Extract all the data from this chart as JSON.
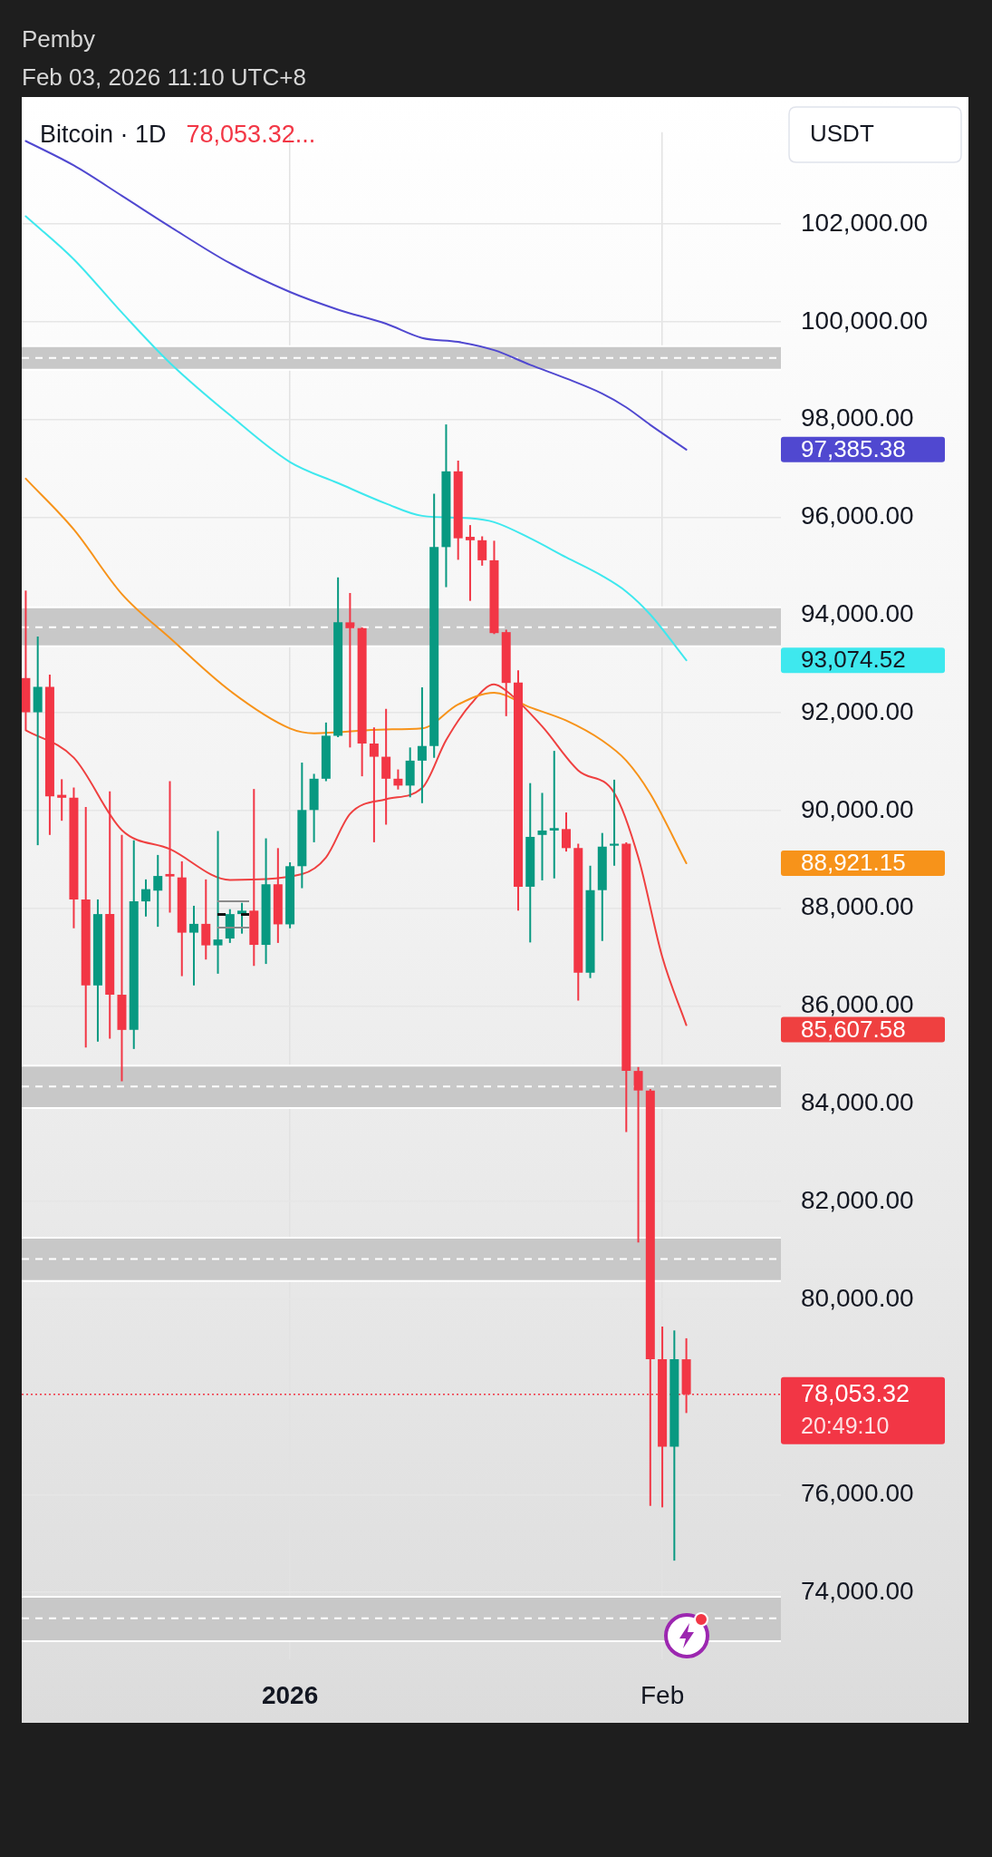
{
  "chart_data": {
    "type": "candlestick",
    "title": "Bitcoin · 1D",
    "subtitle": "78,053.32...",
    "ylabel": "USDT",
    "annotations": [
      "Pemby",
      "Feb 03, 2026 11:10 UTC+8",
      "97,385.38",
      "93,074.52",
      "88,921.15",
      "85,607.58"
    ],
    "xlim": [
      "2025-12-09T16:00",
      "2026-02-10T21:00"
    ],
    "xticks": [
      {
        "value": "2026-01-01",
        "label": "2026"
      },
      {
        "value": "2026-02-01",
        "label": "Feb"
      }
    ],
    "ylim": [
      72630,
      103880
    ],
    "yticks": [
      {
        "value": 74000,
        "label": "74,000.00"
      },
      {
        "value": 76000,
        "label": "76,000.00"
      },
      {
        "value": 78000,
        "label": null
      },
      {
        "value": 80000,
        "label": "80,000.00"
      },
      {
        "value": 82000,
        "label": "82,000.00"
      },
      {
        "value": 84000,
        "label": "84,000.00"
      },
      {
        "value": 86000,
        "label": "86,000.00"
      },
      {
        "value": 88000,
        "label": "88,000.00"
      },
      {
        "value": 90000,
        "label": "90,000.00"
      },
      {
        "value": 92000,
        "label": "92,000.00"
      },
      {
        "value": 94000,
        "label": "94,000.00"
      },
      {
        "value": 96000,
        "label": "96,000.00"
      },
      {
        "value": 98000,
        "label": "98,000.00"
      },
      {
        "value": 100000,
        "label": "100,000.00"
      },
      {
        "value": 102000,
        "label": "102,000.00"
      }
    ],
    "grid": true,
    "series": [
      {
        "x": [
          "2025-12-10",
          "2025-12-11",
          "2025-12-12",
          "2025-12-13",
          "2025-12-14",
          "2025-12-15",
          "2025-12-16",
          "2025-12-17",
          "2025-12-18",
          "2025-12-19",
          "2025-12-20",
          "2025-12-21",
          "2025-12-22",
          "2025-12-23",
          "2025-12-24",
          "2025-12-25",
          "2025-12-26",
          "2025-12-27",
          "2025-12-28",
          "2025-12-29",
          "2025-12-30",
          "2025-12-31",
          "2026-01-01",
          "2026-01-02",
          "2026-01-03",
          "2026-01-04",
          "2026-01-05",
          "2026-01-06",
          "2026-01-07",
          "2026-01-08",
          "2026-01-09",
          "2026-01-10",
          "2026-01-11",
          "2026-01-12",
          "2026-01-13",
          "2026-01-14",
          "2026-01-15",
          "2026-01-16",
          "2026-01-17",
          "2026-01-18",
          "2026-01-19",
          "2026-01-20",
          "2026-01-21",
          "2026-01-22",
          "2026-01-23",
          "2026-01-24",
          "2026-01-25",
          "2026-01-26",
          "2026-01-27",
          "2026-01-28",
          "2026-01-29",
          "2026-01-30",
          "2026-01-31",
          "2026-02-01",
          "2026-02-02",
          "2026-02-03"
        ],
        "ohlc": [
          [
            92710,
            94500,
            91650,
            92010
          ],
          [
            92010,
            93560,
            89290,
            92530
          ],
          [
            92530,
            92780,
            89500,
            90290
          ],
          [
            90320,
            90640,
            89790,
            90260
          ],
          [
            90260,
            90470,
            87590,
            88180
          ],
          [
            88180,
            90070,
            85150,
            86420
          ],
          [
            86420,
            88180,
            85270,
            87880
          ],
          [
            87880,
            90390,
            85330,
            86230
          ],
          [
            86230,
            89500,
            84460,
            85510
          ],
          [
            85510,
            89390,
            85120,
            88140
          ],
          [
            88140,
            88590,
            87830,
            88390
          ],
          [
            88360,
            89090,
            87620,
            88660
          ],
          [
            88700,
            90600,
            87910,
            88650
          ],
          [
            88630,
            88960,
            86610,
            87500
          ],
          [
            87500,
            88050,
            86420,
            87680
          ],
          [
            87680,
            88590,
            86950,
            87240
          ],
          [
            87240,
            89580,
            86660,
            87360
          ],
          [
            87380,
            87980,
            87290,
            87880
          ],
          [
            87880,
            88110,
            87480,
            87950
          ],
          [
            87950,
            90440,
            86820,
            87250
          ],
          [
            87250,
            89430,
            86860,
            88490
          ],
          [
            88490,
            89230,
            87290,
            87670
          ],
          [
            87670,
            88940,
            87590,
            88860
          ],
          [
            88860,
            90980,
            88410,
            90010
          ],
          [
            90010,
            90750,
            89350,
            90650
          ],
          [
            90650,
            91800,
            90600,
            91530
          ],
          [
            91530,
            94770,
            91500,
            93850
          ],
          [
            93850,
            94450,
            91290,
            93730
          ],
          [
            93730,
            93750,
            90700,
            91370
          ],
          [
            91370,
            91700,
            89350,
            91100
          ],
          [
            91100,
            92080,
            89710,
            90650
          ],
          [
            90650,
            90840,
            90430,
            90510
          ],
          [
            90510,
            91290,
            90270,
            91020
          ],
          [
            91020,
            92520,
            90150,
            91320
          ],
          [
            91320,
            96480,
            91080,
            95390
          ],
          [
            95390,
            97900,
            94570,
            96940
          ],
          [
            96940,
            97160,
            95130,
            95570
          ],
          [
            95600,
            95840,
            94290,
            95530
          ],
          [
            95530,
            95610,
            95010,
            95120
          ],
          [
            95120,
            95520,
            93610,
            93630
          ],
          [
            93650,
            93700,
            91930,
            92610
          ],
          [
            92620,
            92870,
            87950,
            88440
          ],
          [
            88440,
            90560,
            87300,
            89460
          ],
          [
            89500,
            90360,
            88570,
            89590
          ],
          [
            89590,
            91220,
            88610,
            89640
          ],
          [
            89620,
            89960,
            89160,
            89230
          ],
          [
            89230,
            89320,
            86110,
            86680
          ],
          [
            86680,
            88870,
            86570,
            88370
          ],
          [
            88370,
            89540,
            87330,
            89260
          ],
          [
            89280,
            90630,
            88870,
            89320
          ],
          [
            89320,
            89350,
            83420,
            84670
          ],
          [
            84670,
            84750,
            81160,
            84270
          ],
          [
            84270,
            84300,
            75770,
            78770
          ],
          [
            78770,
            79440,
            75740,
            76980
          ],
          [
            76980,
            79360,
            74650,
            78770
          ],
          [
            78770,
            79200,
            77670,
            78053.32
          ]
        ],
        "colors": [
          "#f23645",
          "#089981",
          "#f23645",
          "#f23645",
          "#f23645",
          "#f23645",
          "#089981",
          "#f23645",
          "#f23645",
          "#089981",
          "#089981",
          "#089981",
          "#f23645",
          "#f23645",
          "#089981",
          "#f23645",
          "#089981",
          "#089981",
          "#089981",
          "#f23645",
          "#089981",
          "#f23645",
          "#089981",
          "#089981",
          "#089981",
          "#089981",
          "#089981",
          "#f23645",
          "#f23645",
          "#f23645",
          "#f23645",
          "#f23645",
          "#089981",
          "#089981",
          "#089981",
          "#089981",
          "#f23645",
          "#f23645",
          "#f23645",
          "#f23645",
          "#f23645",
          "#f23645",
          "#089981",
          "#089981",
          "#089981",
          "#f23645",
          "#f23645",
          "#089981",
          "#089981",
          "#089981",
          "#f23645",
          "#f23645",
          "#f23645",
          "#f23645",
          "#089981",
          "#f23645"
        ]
      },
      {
        "type": "line",
        "color": "#5048d0",
        "x": [
          "2025-12-10",
          "2025-12-14",
          "2025-12-18",
          "2025-12-22",
          "2025-12-27",
          "2026-01-01",
          "2026-01-05",
          "2026-01-09",
          "2026-01-12",
          "2026-01-15",
          "2026-01-18",
          "2026-01-21",
          "2026-01-24",
          "2026-01-27",
          "2026-01-29",
          "2026-01-31",
          "2026-02-03"
        ],
        "values": [
          103700,
          103200,
          102580,
          101950,
          101200,
          100610,
          100250,
          99960,
          99670,
          99590,
          99420,
          99120,
          98840,
          98530,
          98250,
          97890,
          97385.38
        ]
      },
      {
        "type": "line",
        "color": "#3ee8ee",
        "x": [
          "2025-12-10",
          "2025-12-14",
          "2025-12-18",
          "2025-12-22",
          "2025-12-27",
          "2026-01-01",
          "2026-01-05",
          "2026-01-09",
          "2026-01-12",
          "2026-01-16",
          "2026-01-18",
          "2026-01-21",
          "2026-01-24",
          "2026-01-27",
          "2026-01-29",
          "2026-01-31",
          "2026-02-03"
        ],
        "values": [
          102160,
          101280,
          100190,
          99160,
          98090,
          97130,
          96700,
          96280,
          96030,
          95980,
          95900,
          95570,
          95180,
          94800,
          94480,
          94010,
          93074.52
        ]
      },
      {
        "type": "line",
        "color": "#f7931a",
        "x": [
          "2025-12-10",
          "2025-12-14",
          "2025-12-18",
          "2025-12-22",
          "2025-12-27",
          "2026-01-01",
          "2026-01-03",
          "2026-01-09",
          "2026-01-12",
          "2026-01-15",
          "2026-01-18",
          "2026-01-21",
          "2026-01-24",
          "2026-01-27",
          "2026-01-29",
          "2026-01-31",
          "2026-02-03"
        ],
        "values": [
          96790,
          95750,
          94430,
          93530,
          92450,
          91680,
          91580,
          91660,
          91680,
          92170,
          92410,
          92110,
          91840,
          91430,
          91020,
          90340,
          88921.15
        ]
      },
      {
        "type": "line",
        "color": "#ef4040",
        "x": [
          "2025-12-10",
          "2025-12-14",
          "2025-12-18",
          "2025-12-22",
          "2025-12-27",
          "2026-01-02",
          "2026-01-04",
          "2026-01-06",
          "2026-01-09",
          "2026-01-12",
          "2026-01-14",
          "2026-01-16",
          "2026-01-18",
          "2026-01-19",
          "2026-01-22",
          "2026-01-25",
          "2026-01-28",
          "2026-01-30",
          "2026-02-01",
          "2026-02-03"
        ],
        "values": [
          91640,
          91080,
          89600,
          89210,
          88580,
          88700,
          89040,
          89930,
          90230,
          90460,
          91440,
          92160,
          92580,
          92450,
          91720,
          90820,
          90360,
          89040,
          87000,
          85607.58
        ]
      }
    ],
    "bands": [
      {
        "axis": "y",
        "from": 99020,
        "to": 99500,
        "color": "#c8c8c8"
      },
      {
        "axis": "y",
        "from": 93360,
        "to": 94160,
        "color": "#c8c8c8"
      },
      {
        "axis": "y",
        "from": 83910,
        "to": 84780,
        "color": "#c8c8c8"
      },
      {
        "axis": "y",
        "from": 80370,
        "to": 81260,
        "color": "#c8c8c8"
      },
      {
        "axis": "y",
        "from": 73000,
        "to": 73910,
        "color": "#c8c8c8"
      }
    ],
    "ref_lines": [
      {
        "axis": "y",
        "value": 99260,
        "color": "#ffffff",
        "line_style": "dashed"
      },
      {
        "axis": "y",
        "value": 93750,
        "color": "#ffffff",
        "line_style": "dashed"
      },
      {
        "axis": "y",
        "value": 84350,
        "color": "#ffffff",
        "line_style": "dashed"
      },
      {
        "axis": "y",
        "value": 80820,
        "color": "#ffffff",
        "line_style": "dashed"
      },
      {
        "axis": "y",
        "value": 73470,
        "color": "#ffffff",
        "line_style": "dashed"
      },
      {
        "axis": "y",
        "value": 78053.32,
        "label": "78,053.32\n20:49:10",
        "color": "#f23645",
        "line_style": "dotted"
      }
    ]
  }
}
